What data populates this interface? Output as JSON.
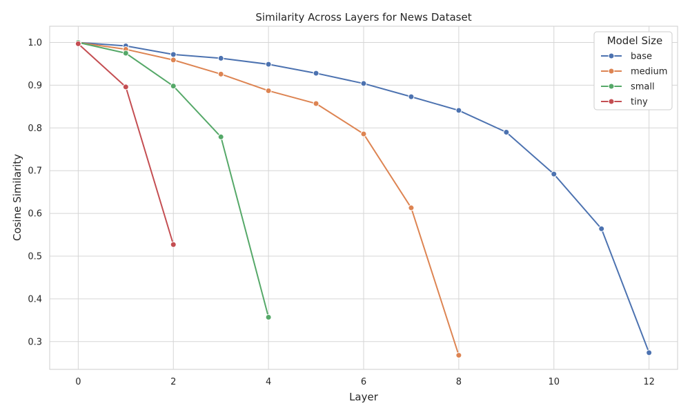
{
  "chart_data": {
    "type": "line",
    "title": "Similarity Across Layers for News Dataset",
    "xlabel": "Layer",
    "ylabel": "Cosine Similarity",
    "xlim": [
      -0.6,
      12.6
    ],
    "ylim": [
      0.235,
      1.038
    ],
    "xticks": [
      0,
      2,
      4,
      6,
      8,
      10,
      12
    ],
    "yticks": [
      0.3,
      0.4,
      0.5,
      0.6,
      0.7,
      0.8,
      0.9,
      1.0
    ],
    "ytick_labels": [
      "0.3",
      "0.4",
      "0.5",
      "0.6",
      "0.7",
      "0.8",
      "0.9",
      "1.0"
    ],
    "grid": true,
    "legend": {
      "title": "Model Size",
      "placement": "top-right"
    },
    "series": [
      {
        "name": "base",
        "color": "#4c72b0",
        "x": [
          0,
          1,
          2,
          3,
          4,
          5,
          6,
          7,
          8,
          9,
          10,
          11,
          12
        ],
        "y": [
          1.0,
          0.992,
          0.972,
          0.963,
          0.949,
          0.928,
          0.904,
          0.873,
          0.841,
          0.79,
          0.692,
          0.564,
          0.274
        ]
      },
      {
        "name": "medium",
        "color": "#dd8452",
        "x": [
          0,
          1,
          2,
          3,
          4,
          5,
          6,
          7,
          8
        ],
        "y": [
          1.0,
          0.984,
          0.959,
          0.926,
          0.887,
          0.857,
          0.786,
          0.613,
          0.268
        ]
      },
      {
        "name": "small",
        "color": "#55a868",
        "x": [
          0,
          1,
          2,
          3,
          4
        ],
        "y": [
          1.0,
          0.975,
          0.898,
          0.779,
          0.357
        ]
      },
      {
        "name": "tiny",
        "color": "#c44e52",
        "x": [
          0,
          1,
          2
        ],
        "y": [
          0.997,
          0.896,
          0.527
        ]
      }
    ]
  }
}
